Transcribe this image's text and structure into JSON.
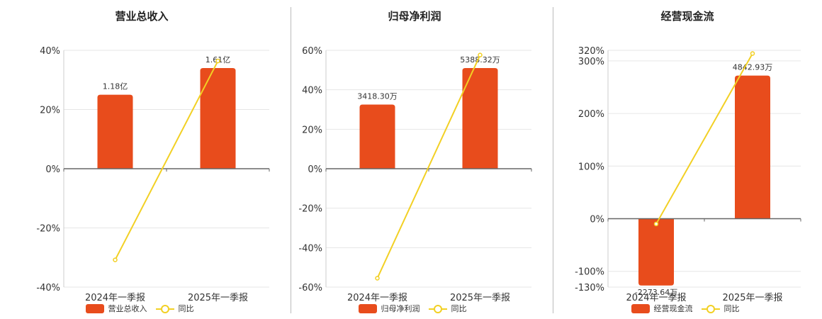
{
  "colors": {
    "bar": "#E84C1C",
    "line": "#F2D024",
    "grid": "#e6e6e6",
    "axis": "#666666"
  },
  "legend": {
    "line_label": "同比"
  },
  "chart_data": [
    {
      "type": "bar",
      "title": "营业总收入",
      "categories": [
        "2024年一季报",
        "2025年一季报"
      ],
      "series": [
        {
          "name": "营业总收入",
          "kind": "bar",
          "axis": "left",
          "values": [
            25,
            34
          ],
          "labels": [
            "1.18亿",
            "1.61亿"
          ]
        },
        {
          "name": "同比",
          "kind": "line",
          "axis": "left",
          "values": [
            -30.8,
            36.4
          ]
        }
      ],
      "ylim": [
        -40,
        40
      ],
      "yticks": [
        -40,
        -20,
        0,
        20,
        40
      ]
    },
    {
      "type": "bar",
      "title": "归母净利润",
      "categories": [
        "2024年一季报",
        "2025年一季报"
      ],
      "series": [
        {
          "name": "归母净利润",
          "kind": "bar",
          "axis": "left",
          "values": [
            32.5,
            51
          ],
          "labels": [
            "3418.30万",
            "5388.32万"
          ]
        },
        {
          "name": "同比",
          "kind": "line",
          "axis": "left",
          "values": [
            -55.5,
            57.6
          ]
        }
      ],
      "ylim": [
        -60,
        60
      ],
      "yticks": [
        -60,
        -40,
        -20,
        0,
        20,
        40,
        60
      ]
    },
    {
      "type": "bar",
      "title": "经营现金流",
      "categories": [
        "2024年一季报",
        "2025年一季报"
      ],
      "series": [
        {
          "name": "经营现金流",
          "kind": "bar",
          "axis": "left",
          "values": [
            -127,
            272
          ],
          "labels": [
            "-2273.64万",
            "4842.93万"
          ]
        },
        {
          "name": "同比",
          "kind": "line",
          "axis": "left",
          "values": [
            -10,
            314
          ]
        }
      ],
      "ylim": [
        -130,
        320
      ],
      "yticks": [
        -130,
        -100,
        0,
        100,
        200,
        300,
        320
      ]
    }
  ]
}
